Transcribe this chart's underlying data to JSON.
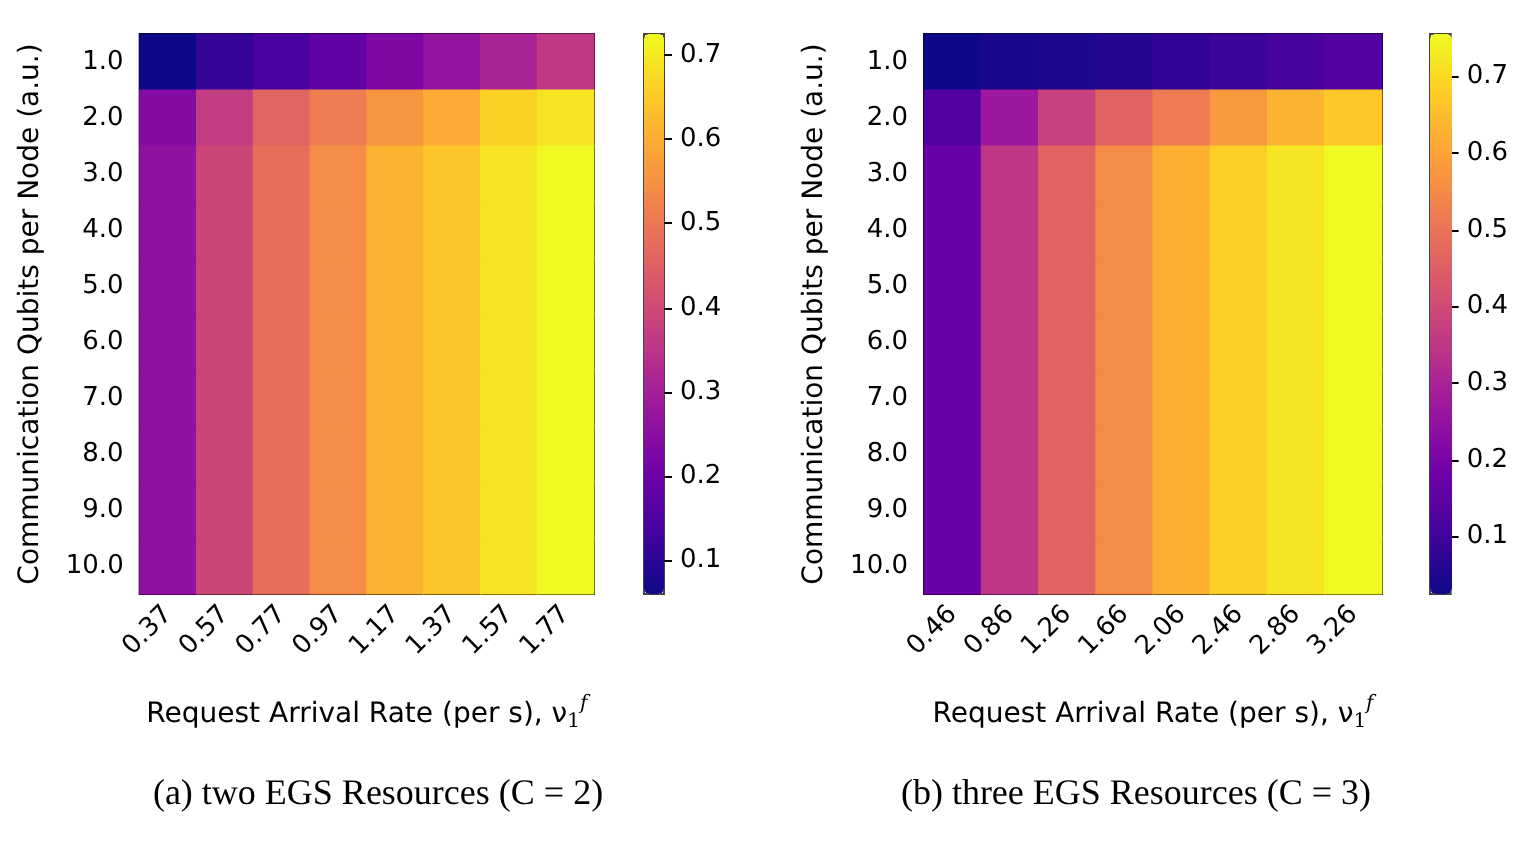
{
  "chart_data": [
    {
      "type": "heatmap",
      "title": "(a) two EGS Resources (C = 2)",
      "xlabel": "Request Arrival Rate (per s), ν$_{1}$$^{f}$",
      "ylabel": "Communication Qubits per Node (a.u.)",
      "categories": [
        "0.37",
        "0.57",
        "0.77",
        "0.97",
        "1.17",
        "1.37",
        "1.57",
        "1.77"
      ],
      "y_categories": [
        "1.0",
        "2.0",
        "3.0",
        "4.0",
        "5.0",
        "6.0",
        "7.0",
        "8.0",
        "9.0",
        "10.0"
      ],
      "cells": [
        [
          0.06,
          0.11,
          0.14,
          0.18,
          0.23,
          0.27,
          0.31,
          0.36
        ],
        [
          0.24,
          0.37,
          0.46,
          0.51,
          0.56,
          0.6,
          0.66,
          0.69
        ],
        [
          0.26,
          0.39,
          0.48,
          0.54,
          0.61,
          0.645,
          0.69,
          0.725
        ],
        [
          0.26,
          0.39,
          0.48,
          0.54,
          0.61,
          0.645,
          0.69,
          0.725
        ],
        [
          0.26,
          0.39,
          0.48,
          0.54,
          0.61,
          0.645,
          0.69,
          0.725
        ],
        [
          0.26,
          0.39,
          0.48,
          0.54,
          0.61,
          0.645,
          0.69,
          0.725
        ],
        [
          0.26,
          0.39,
          0.48,
          0.54,
          0.61,
          0.645,
          0.69,
          0.725
        ],
        [
          0.26,
          0.39,
          0.48,
          0.54,
          0.61,
          0.645,
          0.69,
          0.725
        ],
        [
          0.26,
          0.39,
          0.48,
          0.54,
          0.61,
          0.645,
          0.69,
          0.725
        ],
        [
          0.26,
          0.39,
          0.48,
          0.54,
          0.61,
          0.645,
          0.69,
          0.725
        ]
      ],
      "clim": [
        0.06,
        0.725
      ],
      "cticks": [
        0.1,
        0.2,
        0.3,
        0.4,
        0.5,
        0.6,
        0.7
      ]
    },
    {
      "type": "heatmap",
      "title": "(b) three EGS Resources (C = 3)",
      "xlabel": "Request Arrival Rate (per s), ν$_{1}$$^{f}$",
      "ylabel": "Communication Qubits per Node (a.u.)",
      "categories": [
        "0.46",
        "0.86",
        "1.26",
        "1.66",
        "2.06",
        "2.46",
        "2.86",
        "3.26"
      ],
      "y_categories": [
        "1.0",
        "2.0",
        "3.0",
        "4.0",
        "5.0",
        "6.0",
        "7.0",
        "8.0",
        "9.0",
        "10.0"
      ],
      "cells": [
        [
          0.025,
          0.04,
          0.047,
          0.06,
          0.076,
          0.09,
          0.11,
          0.13
        ],
        [
          0.13,
          0.27,
          0.375,
          0.46,
          0.515,
          0.58,
          0.63,
          0.67
        ],
        [
          0.17,
          0.35,
          0.46,
          0.55,
          0.625,
          0.68,
          0.72,
          0.755
        ],
        [
          0.17,
          0.35,
          0.46,
          0.55,
          0.625,
          0.68,
          0.72,
          0.755
        ],
        [
          0.17,
          0.35,
          0.46,
          0.55,
          0.625,
          0.68,
          0.72,
          0.755
        ],
        [
          0.17,
          0.35,
          0.46,
          0.55,
          0.625,
          0.68,
          0.72,
          0.755
        ],
        [
          0.17,
          0.35,
          0.46,
          0.55,
          0.625,
          0.68,
          0.72,
          0.755
        ],
        [
          0.17,
          0.35,
          0.46,
          0.55,
          0.625,
          0.68,
          0.72,
          0.755
        ],
        [
          0.17,
          0.35,
          0.46,
          0.55,
          0.625,
          0.68,
          0.72,
          0.755
        ],
        [
          0.17,
          0.35,
          0.46,
          0.55,
          0.625,
          0.68,
          0.72,
          0.755
        ]
      ],
      "clim": [
        0.025,
        0.755
      ],
      "cticks": [
        0.1,
        0.2,
        0.3,
        0.4,
        0.5,
        0.6,
        0.7
      ]
    }
  ]
}
